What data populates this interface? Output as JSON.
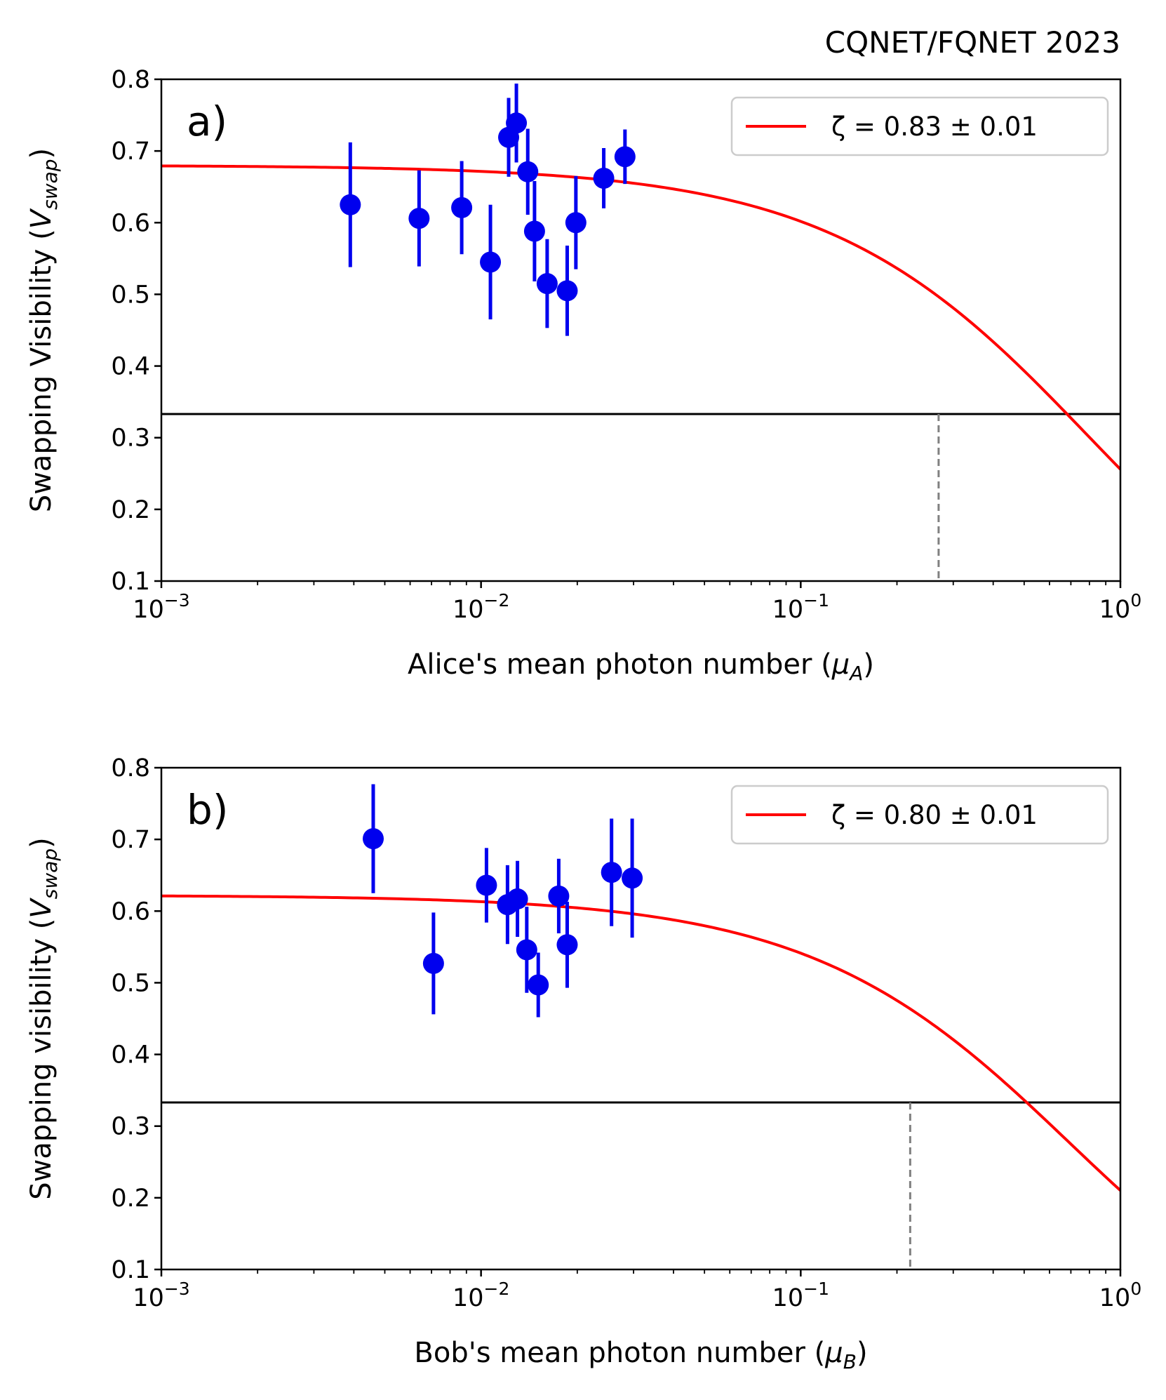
{
  "header": {
    "text": "CQNET/FQNET 2023"
  },
  "chart_data": [
    {
      "type": "scatter",
      "panel_label": "a)",
      "xscale": "log",
      "xlim": [
        0.001,
        1
      ],
      "ylim": [
        0.1,
        0.8
      ],
      "xlabel": "Alice's mean photon number (μ_A)",
      "xlabel_main": "Alice's mean photon number (",
      "xlabel_var": "μ",
      "xlabel_sub": "A",
      "xlabel_close": ")",
      "ylabel": "Swapping Visibility (V_swap)",
      "ylabel_main": "Swapping Visibility (",
      "ylabel_var": "V",
      "ylabel_sub": "swap",
      "ylabel_close": ")",
      "xticks": [
        {
          "value": 0.001,
          "base": "10",
          "exp": "−3"
        },
        {
          "value": 0.01,
          "base": "10",
          "exp": "−2"
        },
        {
          "value": 0.1,
          "base": "10",
          "exp": "−1"
        },
        {
          "value": 1,
          "base": "10",
          "exp": "0"
        }
      ],
      "yticks": [
        "0.1",
        "0.2",
        "0.3",
        "0.4",
        "0.5",
        "0.6",
        "0.7",
        "0.8"
      ],
      "legend": {
        "label": "ζ = 0.83 ± 0.01",
        "placement": "top-right"
      },
      "threshold": 0.333,
      "crossing_x": 0.27,
      "fit": {
        "zeta": 0.83,
        "zeta_err": 0.01,
        "V0": 0.68,
        "k": 0.63
      },
      "colors": {
        "points": "#0000ee",
        "fit": "#ff0000",
        "threshold": "#000000",
        "crossing": "#808080"
      },
      "series": [
        {
          "x": [
            0.0039,
            0.0064,
            0.0087,
            0.0107,
            0.0122,
            0.0129,
            0.014,
            0.0147,
            0.0161,
            0.0186,
            0.0198,
            0.0242,
            0.0282
          ],
          "y": [
            0.625,
            0.606,
            0.621,
            0.545,
            0.719,
            0.739,
            0.671,
            0.588,
            0.515,
            0.505,
            0.6,
            0.662,
            0.692
          ],
          "err": [
            0.087,
            0.067,
            0.065,
            0.08,
            0.055,
            0.055,
            0.06,
            0.07,
            0.062,
            0.063,
            0.065,
            0.042,
            0.038
          ]
        }
      ]
    },
    {
      "type": "scatter",
      "panel_label": "b)",
      "xscale": "log",
      "xlim": [
        0.001,
        1
      ],
      "ylim": [
        0.1,
        0.8
      ],
      "xlabel": "Bob's mean photon number (μ_B)",
      "xlabel_main": "Bob's mean photon number (",
      "xlabel_var": "μ",
      "xlabel_sub": "B",
      "xlabel_close": ")",
      "ylabel": "Swapping visibility  (V_swap)",
      "ylabel_main": "Swapping visibility  (",
      "ylabel_var": "V",
      "ylabel_sub": "swap",
      "ylabel_close": ")",
      "xticks": [
        {
          "value": 0.001,
          "base": "10",
          "exp": "−3"
        },
        {
          "value": 0.01,
          "base": "10",
          "exp": "−2"
        },
        {
          "value": 0.1,
          "base": "10",
          "exp": "−1"
        },
        {
          "value": 1,
          "base": "10",
          "exp": "0"
        }
      ],
      "yticks": [
        "0.1",
        "0.2",
        "0.3",
        "0.4",
        "0.5",
        "0.6",
        "0.7",
        "0.8"
      ],
      "legend": {
        "label": "ζ = 0.80 ± 0.01",
        "placement": "top-right"
      },
      "threshold": 0.333,
      "crossing_x": 0.22,
      "fit": {
        "zeta": 0.8,
        "zeta_err": 0.01,
        "V0": 0.622,
        "k": 0.72
      },
      "colors": {
        "points": "#0000ee",
        "fit": "#ff0000",
        "threshold": "#000000",
        "crossing": "#808080"
      },
      "series": [
        {
          "x": [
            0.0046,
            0.0071,
            0.0104,
            0.0121,
            0.013,
            0.0139,
            0.0151,
            0.0175,
            0.0186,
            0.0256,
            0.0297
          ],
          "y": [
            0.701,
            0.527,
            0.636,
            0.609,
            0.617,
            0.546,
            0.497,
            0.621,
            0.553,
            0.654,
            0.646
          ],
          "err": [
            0.076,
            0.071,
            0.052,
            0.055,
            0.053,
            0.06,
            0.045,
            0.052,
            0.06,
            0.075,
            0.083
          ]
        }
      ]
    }
  ]
}
